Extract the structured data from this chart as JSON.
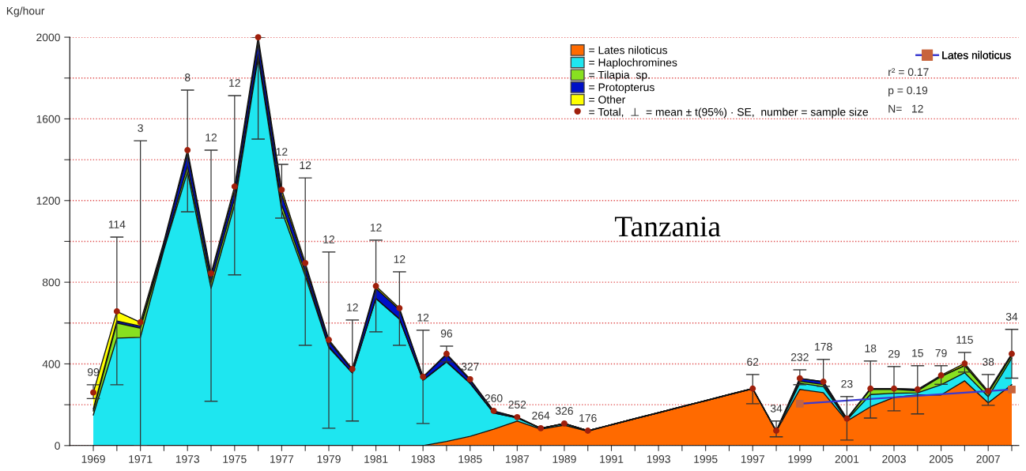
{
  "chart_data": {
    "type": "area",
    "stacked": true,
    "title": "Tanzania",
    "ylabel": "Kg/hour",
    "x": [
      1969,
      1970,
      1971,
      1972,
      1973,
      1974,
      1975,
      1976,
      1977,
      1978,
      1979,
      1980,
      1981,
      1982,
      1983,
      1984,
      1985,
      1986,
      1987,
      1988,
      1989,
      1990,
      1991,
      1992,
      1993,
      1994,
      1995,
      1996,
      1997,
      1998,
      1999,
      2000,
      2001,
      2002,
      2003,
      2004,
      2005,
      2006,
      2007,
      2008
    ],
    "series": [
      {
        "name": "= Lates niloticus",
        "color": "#ff6a00",
        "values": [
          0,
          0,
          0,
          0,
          0,
          0,
          0,
          0,
          0,
          0,
          0,
          0,
          0,
          0,
          0,
          20,
          45,
          80,
          120,
          80,
          100,
          70,
          102,
          132,
          161,
          191,
          220,
          250,
          279,
          70,
          275,
          259,
          120,
          190,
          236,
          248,
          248,
          317,
          209,
          298
        ]
      },
      {
        "name": "= Haplochromines",
        "color": "#1ee6f0",
        "values": [
          150,
          526,
          530,
          960,
          1340,
          770,
          1180,
          1900,
          1150,
          830,
          480,
          355,
          720,
          620,
          320,
          390,
          260,
          80,
          15,
          5,
          8,
          3,
          0,
          0,
          0,
          0,
          0,
          0,
          0,
          0,
          30,
          30,
          5,
          60,
          20,
          10,
          50,
          40,
          30,
          130
        ]
      },
      {
        "name": "= Tilapia  sp.",
        "color": "#88e020",
        "values": [
          20,
          74,
          45,
          10,
          30,
          30,
          30,
          20,
          30,
          20,
          5,
          0,
          0,
          0,
          0,
          0,
          0,
          0,
          0,
          0,
          0,
          0,
          0,
          0,
          0,
          0,
          0,
          0,
          0,
          0,
          10,
          10,
          5,
          25,
          20,
          10,
          40,
          35,
          20,
          15
        ]
      },
      {
        "name": "= Protopterus",
        "color": "#0010c8",
        "values": [
          10,
          10,
          10,
          20,
          60,
          30,
          40,
          60,
          50,
          30,
          25,
          15,
          50,
          45,
          15,
          35,
          15,
          8,
          4,
          0,
          0,
          0,
          0,
          0,
          0,
          0,
          0,
          0,
          0,
          0,
          14,
          14,
          2,
          4,
          3,
          7,
          0,
          0,
          0,
          0
        ]
      },
      {
        "name": "= Other",
        "color": "#ffff00",
        "values": [
          80,
          47,
          19,
          10,
          17,
          13,
          19,
          20,
          23,
          14,
          8,
          5,
          11,
          8,
          2,
          4,
          5,
          2,
          0,
          0,
          0,
          0,
          0,
          0,
          0,
          0,
          0,
          0,
          0,
          3,
          0,
          0,
          0,
          0,
          0,
          0,
          6,
          10,
          8,
          6
        ]
      },
      {
        "name": "= Total,  ⊥  = mean ± t(95%) · SE,  number = sample size",
        "type": "scatter",
        "color": "#a0200c",
        "marker": "circle",
        "x": [
          1969,
          1970,
          1971,
          1973,
          1974,
          1975,
          1976,
          1977,
          1978,
          1979,
          1980,
          1981,
          1982,
          1983,
          1984,
          1985,
          1986,
          1987,
          1988,
          1989,
          1990,
          1997,
          1998,
          1999,
          2000,
          2001,
          2002,
          2003,
          2004,
          2005,
          2006,
          2007,
          2008
        ],
        "values": [
          260,
          657,
          604,
          1447,
          843,
          1269,
          2000,
          1253,
          894,
          518,
          375,
          781,
          673,
          337,
          449,
          325,
          170,
          139,
          85,
          108,
          73,
          279,
          73,
          329,
          313,
          132,
          279,
          279,
          275,
          344,
          402,
          267,
          449
        ],
        "errors": [
          [
            230,
            298
          ],
          [
            298,
            1021
          ],
          [
            0,
            1493
          ],
          [
            1145,
            1741
          ],
          [
            217,
            1447
          ],
          [
            836,
            1714
          ],
          [
            1501,
            2000
          ],
          [
            1114,
            1377
          ],
          [
            491,
            1311
          ],
          [
            85,
            948
          ],
          [
            120,
            615
          ],
          [
            557,
            1006
          ],
          [
            491,
            851
          ],
          [
            108,
            565
          ],
          [
            410,
            487
          ],
          null,
          null,
          null,
          null,
          null,
          null,
          [
            205,
            348
          ],
          [
            43,
            120
          ],
          [
            298,
            371
          ],
          [
            290,
            422
          ],
          [
            27,
            240
          ],
          [
            135,
            414
          ],
          [
            170,
            387
          ],
          [
            155,
            391
          ],
          [
            300,
            391
          ],
          [
            360,
            456
          ],
          [
            197,
            348
          ],
          [
            330,
            569
          ]
        ]
      },
      {
        "name": "Lates niloticus",
        "type": "line",
        "color": "#3a3ad0",
        "marker": "square",
        "x": [
          1999,
          2008
        ],
        "values": [
          205,
          275
        ]
      }
    ],
    "annotations": [
      {
        "text": "99",
        "x": 1969,
        "y": 298
      },
      {
        "text": "114",
        "x": 1970,
        "y": 1021
      },
      {
        "text": "3",
        "x": 1971,
        "y": 1493
      },
      {
        "text": "8",
        "x": 1973,
        "y": 1741
      },
      {
        "text": "12",
        "x": 1974,
        "y": 1447
      },
      {
        "text": "12",
        "x": 1975,
        "y": 1714
      },
      {
        "text": "12",
        "x": 1977,
        "y": 1377
      },
      {
        "text": "12",
        "x": 1978,
        "y": 1311
      },
      {
        "text": "12",
        "x": 1979,
        "y": 948
      },
      {
        "text": "12",
        "x": 1980,
        "y": 615
      },
      {
        "text": "12",
        "x": 1981,
        "y": 1006
      },
      {
        "text": "12",
        "x": 1982,
        "y": 851
      },
      {
        "text": "12",
        "x": 1983,
        "y": 565
      },
      {
        "text": "96",
        "x": 1984,
        "y": 487
      },
      {
        "text": "327",
        "x": 1985,
        "y": 325
      },
      {
        "text": "260",
        "x": 1986,
        "y": 170
      },
      {
        "text": "252",
        "x": 1987,
        "y": 139
      },
      {
        "text": "264",
        "x": 1988,
        "y": 85
      },
      {
        "text": "326",
        "x": 1989,
        "y": 108
      },
      {
        "text": "176",
        "x": 1990,
        "y": 73
      },
      {
        "text": "62",
        "x": 1997,
        "y": 348
      },
      {
        "text": "34",
        "x": 1998,
        "y": 120
      },
      {
        "text": "232",
        "x": 1999,
        "y": 371
      },
      {
        "text": "178",
        "x": 2000,
        "y": 422
      },
      {
        "text": "23",
        "x": 2001,
        "y": 240
      },
      {
        "text": "18",
        "x": 2002,
        "y": 414
      },
      {
        "text": "29",
        "x": 2003,
        "y": 387
      },
      {
        "text": "15",
        "x": 2004,
        "y": 391
      },
      {
        "text": "79",
        "x": 2005,
        "y": 391
      },
      {
        "text": "115",
        "x": 2006,
        "y": 456
      },
      {
        "text": "38",
        "x": 2007,
        "y": 348
      },
      {
        "text": "34",
        "x": 2008,
        "y": 569
      },
      "r² = 0.17",
      "p = 0.19",
      "N=   12"
    ],
    "xlim": [
      1968,
      2008.3
    ],
    "ylim": [
      0,
      2000
    ],
    "xticks": [
      1969,
      {
        "value": 1970,
        "label": null
      },
      1971,
      {
        "value": 1972,
        "label": null
      },
      1973,
      {
        "value": 1974,
        "label": null
      },
      1975,
      {
        "value": 1976,
        "label": null
      },
      1977,
      {
        "value": 1978,
        "label": null
      },
      1979,
      {
        "value": 1980,
        "label": null
      },
      1981,
      {
        "value": 1982,
        "label": null
      },
      1983,
      {
        "value": 1984,
        "label": null
      },
      1985,
      {
        "value": 1986,
        "label": null
      },
      1987,
      {
        "value": 1988,
        "label": null
      },
      1989,
      {
        "value": 1990,
        "label": null
      },
      1991,
      {
        "value": 1992,
        "label": null
      },
      1993,
      {
        "value": 1994,
        "label": null
      },
      1995,
      {
        "value": 1996,
        "label": null
      },
      1997,
      {
        "value": 1998,
        "label": null
      },
      1999,
      {
        "value": 2000,
        "label": null
      },
      2001,
      {
        "value": 2002,
        "label": null
      },
      2003,
      {
        "value": 2004,
        "label": null
      },
      2005,
      {
        "value": 2006,
        "label": null
      },
      2007,
      {
        "value": 2008,
        "label": null
      }
    ],
    "yticks": [
      0,
      {
        "value": 200,
        "label": null
      },
      400,
      {
        "value": 600,
        "label": null
      },
      800,
      {
        "value": 1000,
        "label": null
      },
      1200,
      {
        "value": 1400,
        "label": null
      },
      1600,
      {
        "value": 1800,
        "label": null
      },
      2000
    ],
    "grid": "y",
    "legend": "top right"
  }
}
